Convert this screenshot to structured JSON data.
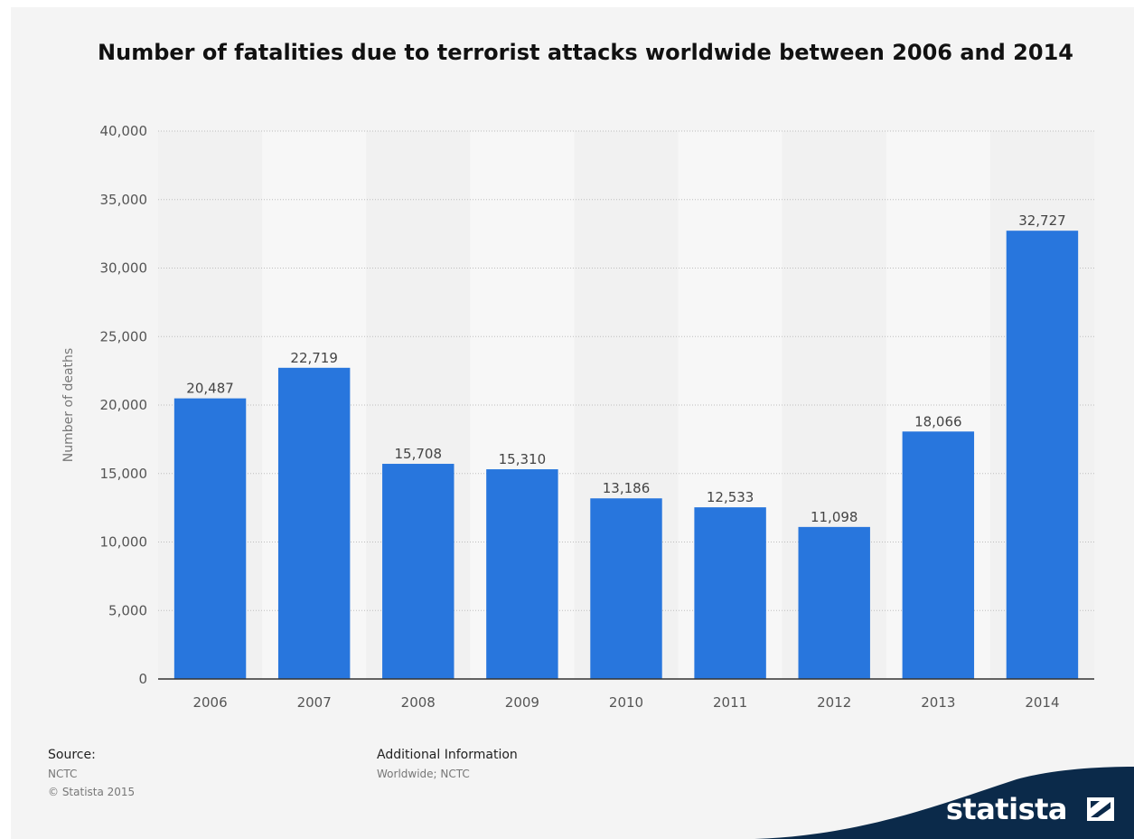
{
  "chart_data": {
    "type": "bar",
    "title": "Number of fatalities due to terrorist attacks worldwide between 2006 and 2014",
    "xlabel": "",
    "ylabel": "Number of deaths",
    "categories": [
      "2006",
      "2007",
      "2008",
      "2009",
      "2010",
      "2011",
      "2012",
      "2013",
      "2014"
    ],
    "values": [
      20487,
      22719,
      15708,
      15310,
      13186,
      12533,
      11098,
      18066,
      32727
    ],
    "data_labels": [
      "20,487",
      "22,719",
      "15,708",
      "15,310",
      "13,186",
      "12,533",
      "11,098",
      "18,066",
      "32,727"
    ],
    "ylim": [
      0,
      40000
    ],
    "yticks": [
      0,
      5000,
      10000,
      15000,
      20000,
      25000,
      30000,
      35000,
      40000
    ],
    "ytick_labels": [
      "0",
      "5,000",
      "10,000",
      "15,000",
      "20,000",
      "25,000",
      "30,000",
      "35,000",
      "40,000"
    ],
    "grid": true,
    "bar_color": "#2876dd"
  },
  "footer": {
    "source_heading": "Source:",
    "source_name": "NCTC",
    "copyright": "© Statista 2015",
    "additional_heading": "Additional Information",
    "additional_text": "Worldwide; NCTC"
  },
  "logo": {
    "text": "statista",
    "color": "#0b2a4a"
  }
}
